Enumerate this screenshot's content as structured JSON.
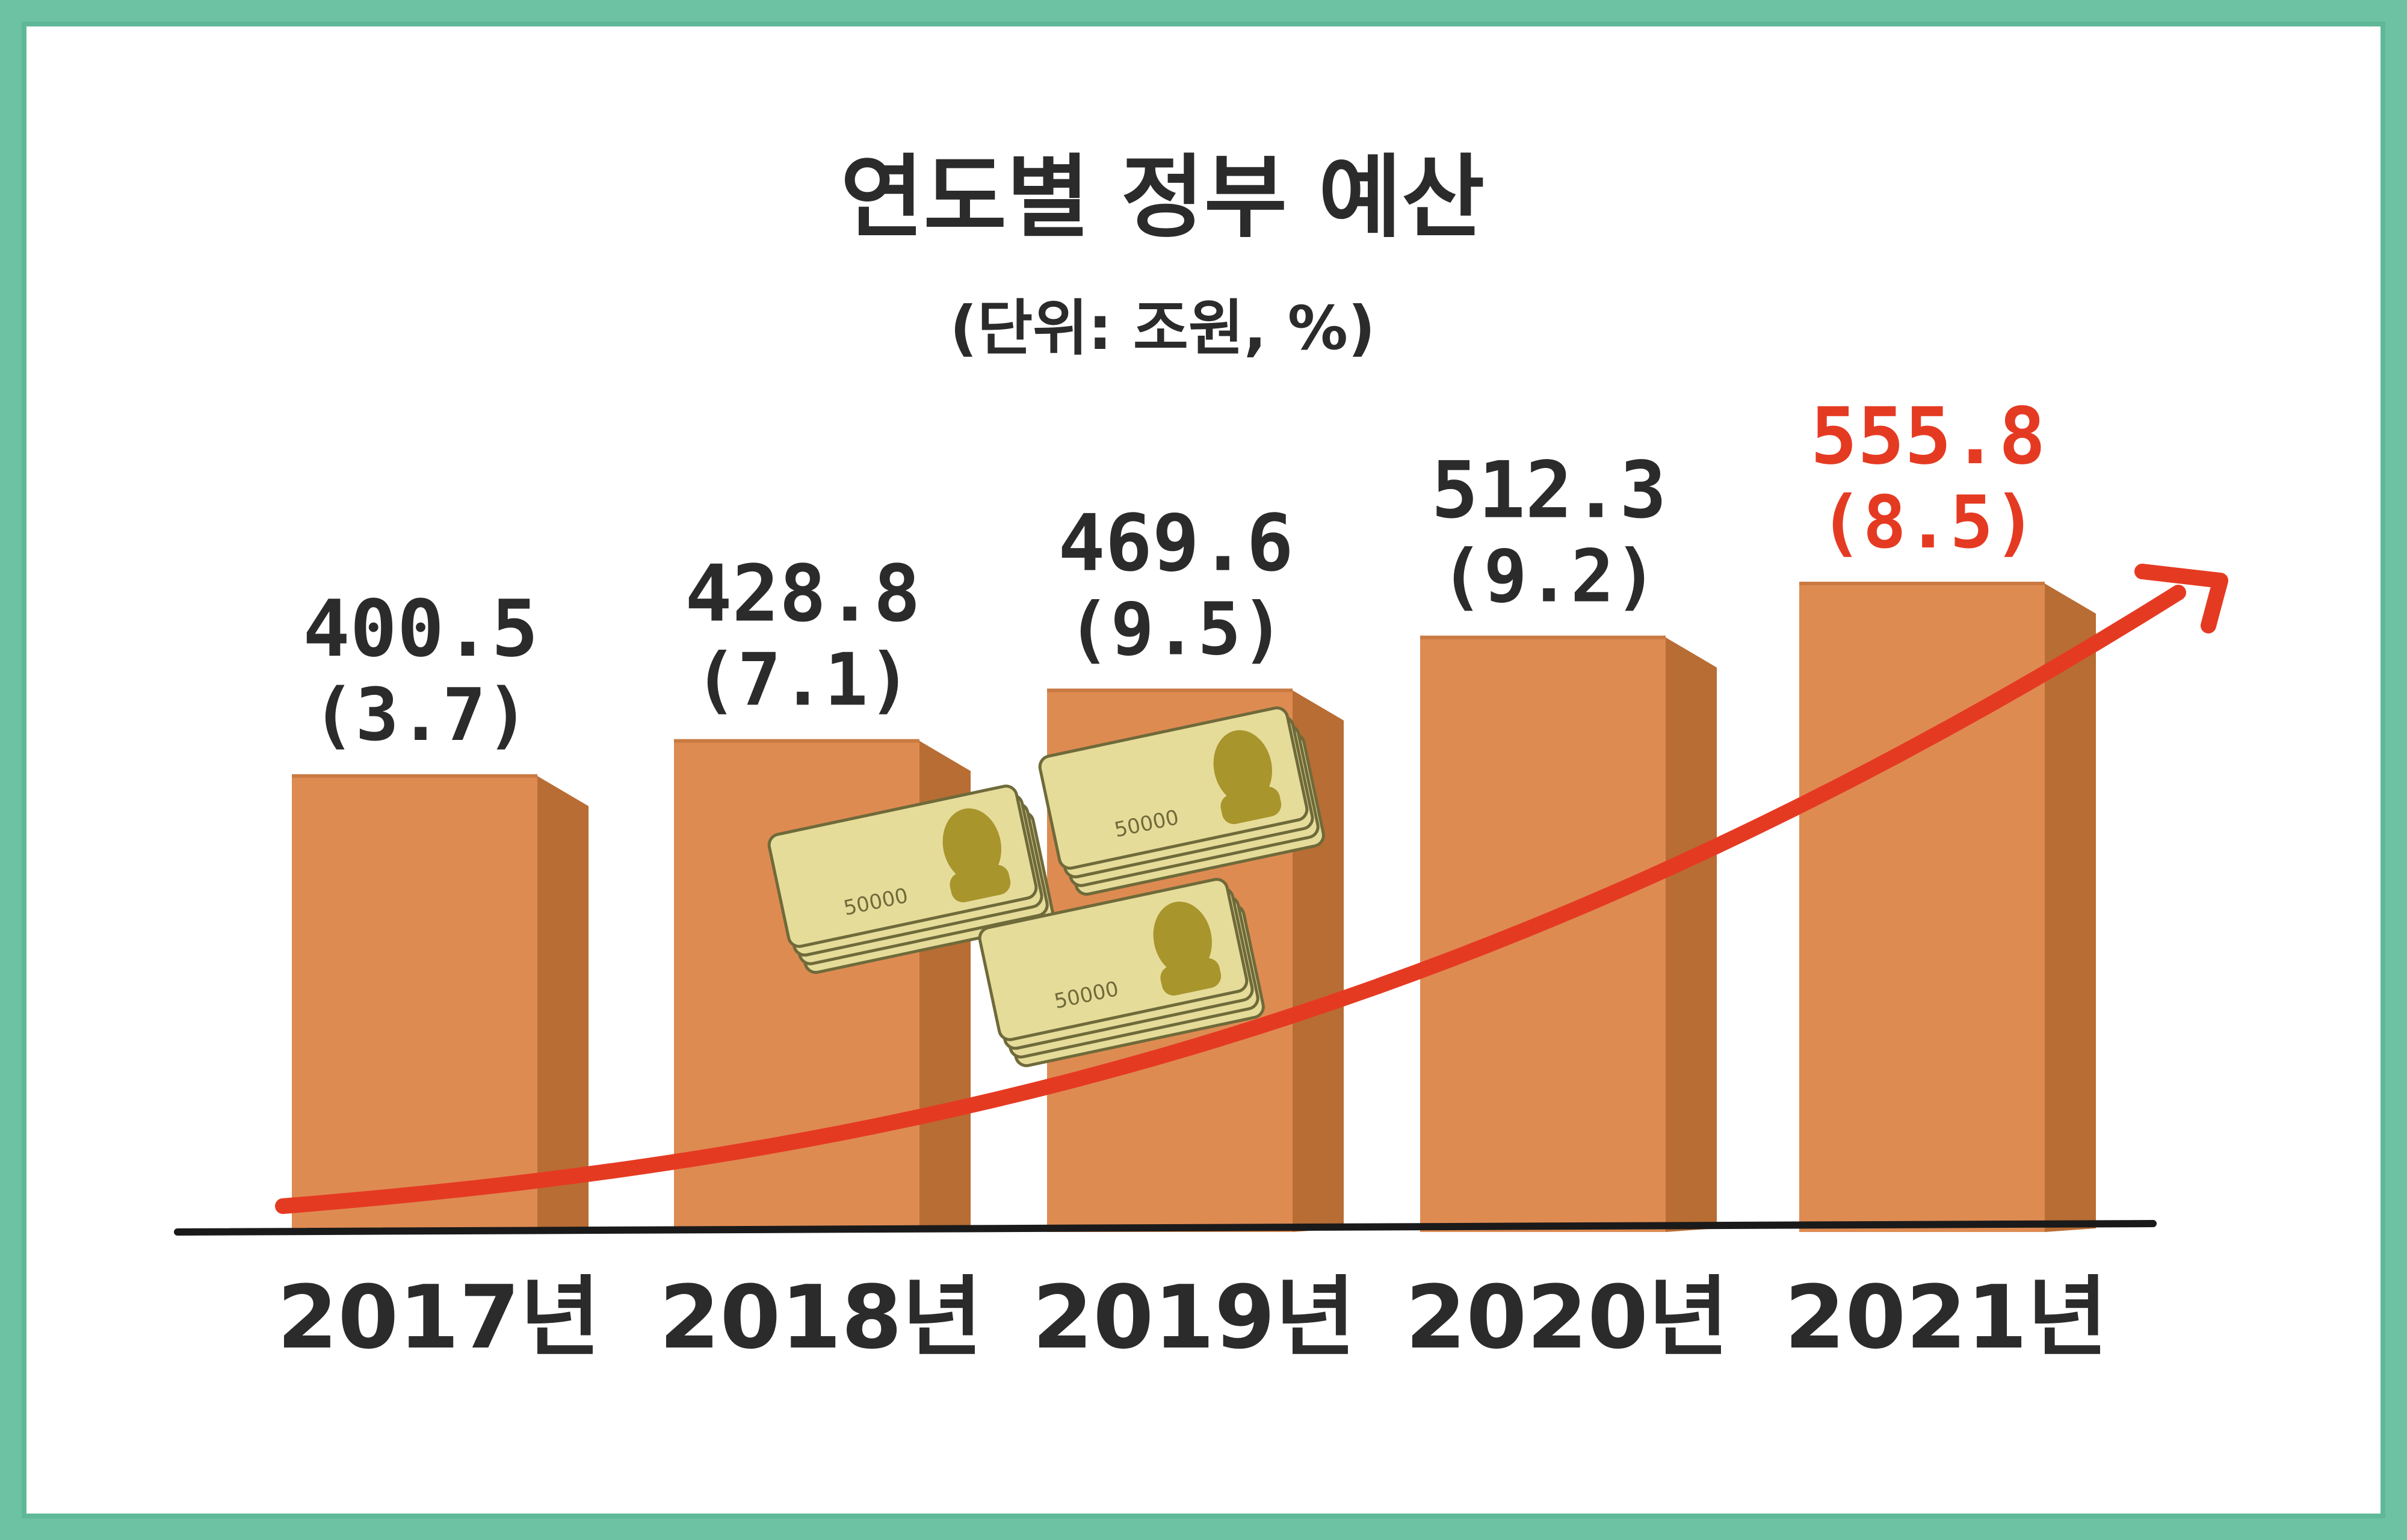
{
  "chart_data": {
    "type": "bar",
    "title": "연도별 정부 예산",
    "subtitle": "(단위: 조원, %)",
    "categories": [
      "2017년",
      "2018년",
      "2019년",
      "2020년",
      "2021년"
    ],
    "values": [
      400.5,
      428.8,
      469.6,
      512.3,
      555.8
    ],
    "value_labels": [
      "400.5",
      "428.8",
      "469.6",
      "512.3",
      "555.8"
    ],
    "growth_labels": [
      "(3.7)",
      "(7.1)",
      "(9.5)",
      "(9.2)",
      "(8.5)"
    ],
    "growth_rates": [
      3.7,
      7.1,
      9.5,
      9.2,
      8.5
    ],
    "highlight_index": 4,
    "trend_arrow": "increasing",
    "grid": false,
    "legend": "none",
    "decorations": [
      "money-bundle",
      "money-bundle",
      "money-bundle"
    ],
    "banknote_text": "50000"
  },
  "colors": {
    "border": "#6cc2a3",
    "bar_front": "#de8b52",
    "bar_side": "#b86d34",
    "bar_top": "#c97a42",
    "text": "#2b2b2b",
    "highlight": "#e53a22",
    "arrow": "#e53a22",
    "baseline": "#1a1a1a",
    "banknote": "#e6dc9a",
    "banknote_dark": "#a8952c"
  }
}
